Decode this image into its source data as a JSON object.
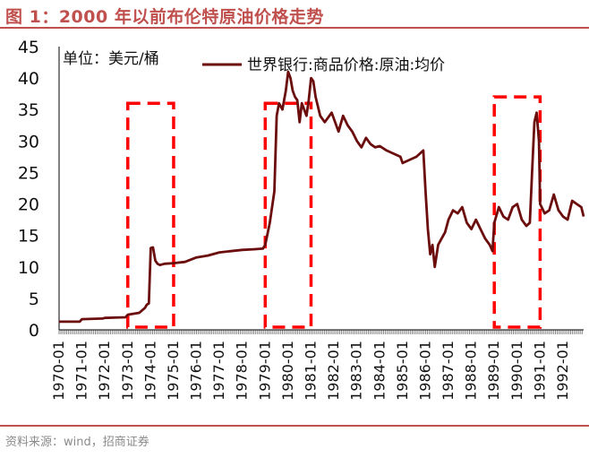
{
  "figure_title": "图 1：2000 年以前布伦特原油价格走势",
  "source": "资料来源：wind，招商证券",
  "unit_label": "单位：美元/桶",
  "colors": {
    "line": "#6b0d0d",
    "highlight": "#ff0000",
    "accent": "#c0504d"
  },
  "chart_data": {
    "type": "line",
    "title": "",
    "xlabel": "",
    "ylabel": "",
    "ylim": [
      0,
      45
    ],
    "yticks": [
      0,
      5,
      10,
      15,
      20,
      25,
      30,
      35,
      40,
      45
    ],
    "xlim": [
      1970.0,
      1992.9
    ],
    "xtick_labels": [
      "1970-01",
      "1971-01",
      "1972-01",
      "1973-01",
      "1974-01",
      "1975-01",
      "1976-01",
      "1977-01",
      "1978-01",
      "1979-01",
      "1980-01",
      "1981-01",
      "1982-01",
      "1983-01",
      "1984-01",
      "1985-01",
      "1986-01",
      "1987-01",
      "1988-01",
      "1989-01",
      "1990-01",
      "1991-01",
      "1992-01"
    ],
    "grid": false,
    "legend": "top-right",
    "series": [
      {
        "name": "世界银行:商品价格:原油:均价",
        "x": [
          1970.0,
          1970.9,
          1971.0,
          1971.9,
          1972.0,
          1972.9,
          1973.0,
          1973.5,
          1973.75,
          1973.83,
          1973.92,
          1974.0,
          1974.1,
          1974.2,
          1974.3,
          1974.4,
          1974.6,
          1975.0,
          1975.5,
          1976.0,
          1976.5,
          1977.0,
          1977.5,
          1978.0,
          1978.5,
          1978.9,
          1979.0,
          1979.2,
          1979.4,
          1979.5,
          1979.6,
          1979.75,
          1979.9,
          1980.0,
          1980.1,
          1980.2,
          1980.3,
          1980.4,
          1980.5,
          1980.6,
          1980.8,
          1980.9,
          1981.0,
          1981.1,
          1981.2,
          1981.4,
          1981.6,
          1981.9,
          1982.0,
          1982.2,
          1982.4,
          1982.6,
          1982.8,
          1983.0,
          1983.2,
          1983.4,
          1983.6,
          1983.8,
          1984.0,
          1984.3,
          1984.6,
          1984.9,
          1985.0,
          1985.3,
          1985.6,
          1985.9,
          1986.0,
          1986.1,
          1986.2,
          1986.3,
          1986.4,
          1986.55,
          1986.7,
          1986.85,
          1987.0,
          1987.2,
          1987.4,
          1987.6,
          1987.8,
          1988.0,
          1988.2,
          1988.4,
          1988.6,
          1988.8,
          1988.92,
          1989.0,
          1989.2,
          1989.4,
          1989.6,
          1989.8,
          1990.0,
          1990.2,
          1990.4,
          1990.55,
          1990.65,
          1990.75,
          1990.85,
          1990.95,
          1991.0,
          1991.2,
          1991.4,
          1991.6,
          1991.8,
          1992.0,
          1992.2,
          1992.4,
          1992.6,
          1992.8,
          1992.9
        ],
        "values": [
          1.3,
          1.3,
          1.7,
          1.8,
          1.9,
          2.0,
          2.4,
          2.7,
          3.5,
          4.0,
          4.2,
          13.0,
          13.1,
          11.0,
          10.5,
          10.3,
          10.5,
          10.6,
          10.8,
          11.5,
          11.8,
          12.3,
          12.5,
          12.7,
          12.8,
          12.9,
          13.5,
          17.0,
          22.0,
          34.0,
          36.0,
          35.0,
          38.0,
          41.0,
          40.0,
          38.0,
          37.0,
          36.5,
          33.0,
          36.0,
          34.0,
          36.5,
          40.0,
          39.5,
          37.0,
          34.0,
          33.0,
          34.5,
          33.5,
          31.5,
          34.0,
          32.5,
          31.5,
          30.0,
          29.0,
          30.5,
          29.5,
          29.0,
          29.2,
          28.5,
          28.0,
          27.5,
          26.5,
          27.0,
          27.5,
          28.5,
          22.0,
          16.0,
          12.0,
          13.5,
          10.0,
          13.5,
          14.5,
          15.5,
          17.5,
          19.0,
          18.5,
          19.5,
          17.0,
          16.0,
          17.5,
          16.0,
          14.5,
          13.5,
          12.5,
          17.0,
          19.5,
          18.0,
          17.5,
          19.5,
          20.0,
          17.5,
          16.5,
          17.0,
          25.0,
          33.0,
          34.5,
          30.0,
          20.0,
          18.5,
          19.0,
          21.5,
          19.0,
          18.0,
          17.5,
          20.5,
          20.0,
          19.5,
          18.0
        ]
      }
    ],
    "highlight_periods": [
      {
        "start": 1973.0,
        "end": 1975.0,
        "top": 36
      },
      {
        "start": 1979.0,
        "end": 1981.0,
        "top": 36
      },
      {
        "start": 1989.0,
        "end": 1991.0,
        "top": 37
      }
    ]
  }
}
